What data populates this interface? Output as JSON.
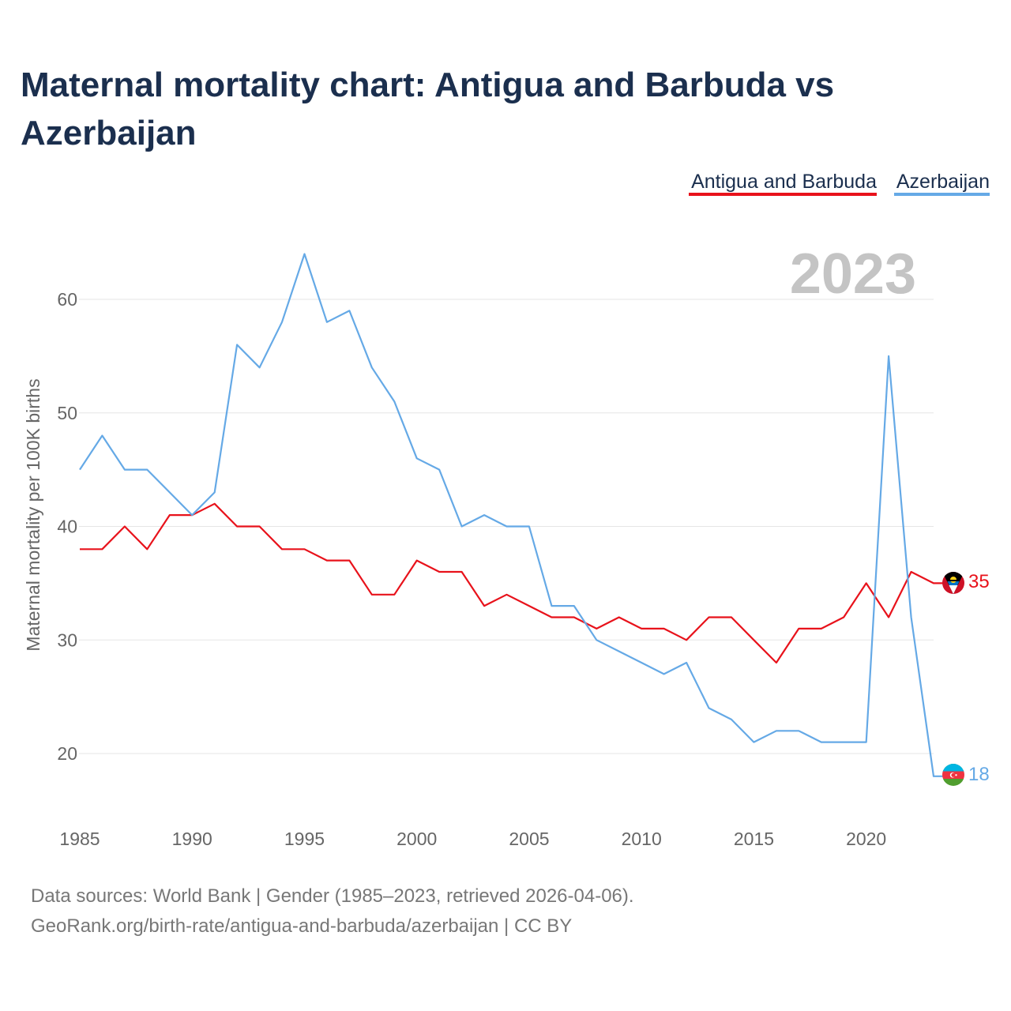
{
  "title_line1": "Maternal mortality chart: Antigua and Barbuda vs",
  "title_line2": "Azerbaijan",
  "year_label": "2023",
  "source_line1": "Data sources: World Bank | Gender (1985–2023, retrieved 2026-04-06).",
  "source_line2": "GeoRank.org/birth-rate/antigua-and-barbuda/azerbaijan | CC BY",
  "colors": {
    "antigua": "#e8121b",
    "azerbaijan": "#65a9e6",
    "title": "#1b2f4e"
  },
  "chart_data": {
    "type": "line",
    "title": "Maternal mortality chart: Antigua and Barbuda vs Azerbaijan",
    "xlabel": "",
    "ylabel": "Maternal mortality per 100K births",
    "xlim": [
      1985,
      2023
    ],
    "ylim": [
      15,
      66
    ],
    "x_ticks": [
      1985,
      1990,
      1995,
      2000,
      2005,
      2010,
      2015,
      2020
    ],
    "y_ticks": [
      20,
      30,
      40,
      50,
      60
    ],
    "grid": true,
    "legend_position": "top-right",
    "x": [
      1985,
      1986,
      1987,
      1988,
      1989,
      1990,
      1991,
      1992,
      1993,
      1994,
      1995,
      1996,
      1997,
      1998,
      1999,
      2000,
      2001,
      2002,
      2003,
      2004,
      2005,
      2006,
      2007,
      2008,
      2009,
      2010,
      2011,
      2012,
      2013,
      2014,
      2015,
      2016,
      2017,
      2018,
      2019,
      2020,
      2021,
      2022,
      2023
    ],
    "series": [
      {
        "name": "Antigua and Barbuda",
        "key": "antigua",
        "end_label": "35",
        "values": [
          38,
          38,
          40,
          38,
          41,
          41,
          42,
          40,
          40,
          38,
          38,
          37,
          37,
          34,
          34,
          37,
          36,
          36,
          33,
          34,
          33,
          32,
          32,
          31,
          32,
          31,
          31,
          30,
          32,
          32,
          30,
          28,
          31,
          31,
          32,
          35,
          32,
          36,
          35
        ]
      },
      {
        "name": "Azerbaijan",
        "key": "azerbaijan",
        "end_label": "18",
        "values": [
          45,
          48,
          45,
          45,
          43,
          41,
          43,
          56,
          54,
          58,
          64,
          58,
          59,
          54,
          51,
          46,
          45,
          40,
          41,
          40,
          40,
          33,
          33,
          30,
          29,
          28,
          27,
          28,
          24,
          23,
          21,
          22,
          22,
          21,
          21,
          21,
          55,
          32,
          18
        ]
      }
    ]
  }
}
